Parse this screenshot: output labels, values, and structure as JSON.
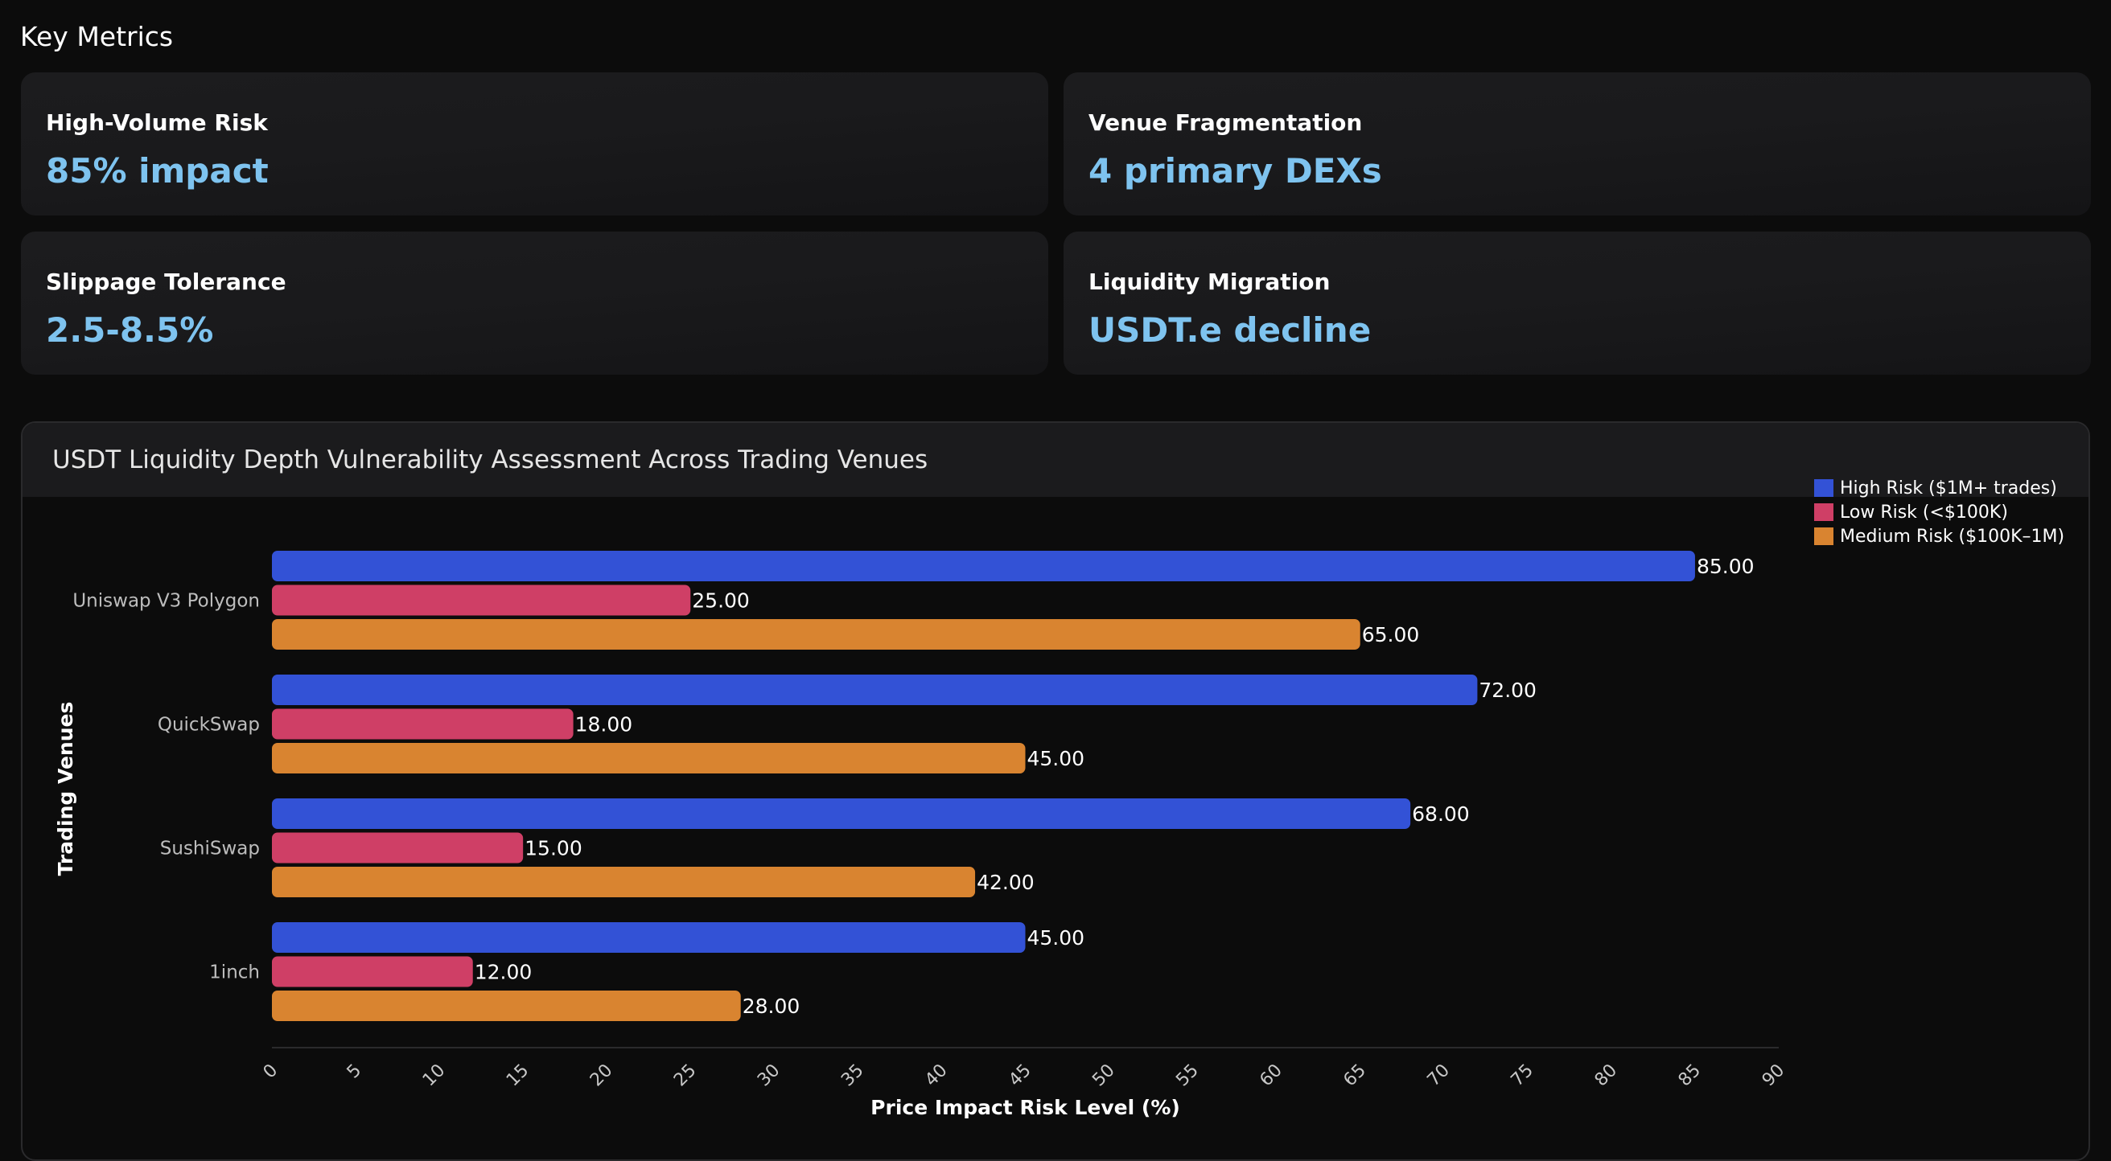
{
  "header": {
    "title": "Key Metrics"
  },
  "metrics": [
    {
      "label": "High-Volume Risk",
      "value": "85% impact"
    },
    {
      "label": "Venue Fragmentation",
      "value": "4 primary DEXs"
    },
    {
      "label": "Slippage Tolerance",
      "value": "2.5-8.5%"
    },
    {
      "label": "Liquidity Migration",
      "value": "USDT.e decline"
    }
  ],
  "colors": {
    "accent_value": "#7ec3ef",
    "high_risk": "#3352d6",
    "low_risk": "#cf3f66",
    "medium_risk": "#d98430"
  },
  "chart_data": {
    "type": "bar",
    "orientation": "horizontal",
    "title": "USDT Liquidity Depth Vulnerability Assessment Across Trading Venues",
    "xlabel": "Price Impact Risk Level (%)",
    "ylabel": "Trading Venues",
    "categories": [
      "Uniswap V3 Polygon",
      "QuickSwap",
      "SushiSwap",
      "1inch"
    ],
    "series": [
      {
        "name": "High Risk ($1M+ trades)",
        "color": "#3352d6",
        "values": [
          85,
          72,
          68,
          45
        ]
      },
      {
        "name": "Low Risk (<$100K)",
        "color": "#cf3f66",
        "values": [
          25,
          18,
          15,
          12
        ]
      },
      {
        "name": "Medium Risk ($100K–1M)",
        "color": "#d98430",
        "values": [
          65,
          45,
          42,
          28
        ]
      }
    ],
    "xlim": [
      0,
      90
    ],
    "xticks": [
      0,
      5,
      10,
      15,
      20,
      25,
      30,
      35,
      40,
      45,
      50,
      55,
      60,
      65,
      70,
      75,
      80,
      85,
      90
    ],
    "value_label_format": "2 decimals",
    "grid": false,
    "legend": "top-right"
  }
}
